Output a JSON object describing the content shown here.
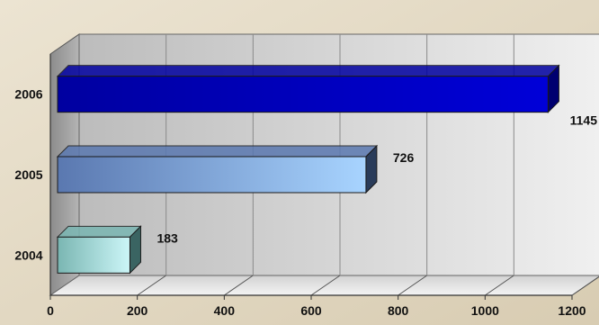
{
  "chart_data": {
    "type": "bar",
    "orientation": "horizontal",
    "style": "3d",
    "categories": [
      "2006",
      "2005",
      "2004"
    ],
    "values": [
      1145,
      726,
      183
    ],
    "title": "",
    "xlabel": "",
    "ylabel": "",
    "xlim": [
      0,
      1200
    ],
    "xticks": [
      "0",
      "200",
      "400",
      "600",
      "800",
      "1000",
      "1200"
    ],
    "grid": true,
    "legend": "none",
    "colors": {
      "2006": [
        "#0000a0",
        "#0000d8",
        "#000070"
      ],
      "2005": [
        "#5a78b0",
        "#a8d4ff",
        "#2a3c5a"
      ],
      "2004": [
        "#7ab6b2",
        "#ccf6f8",
        "#3a6462"
      ]
    }
  }
}
